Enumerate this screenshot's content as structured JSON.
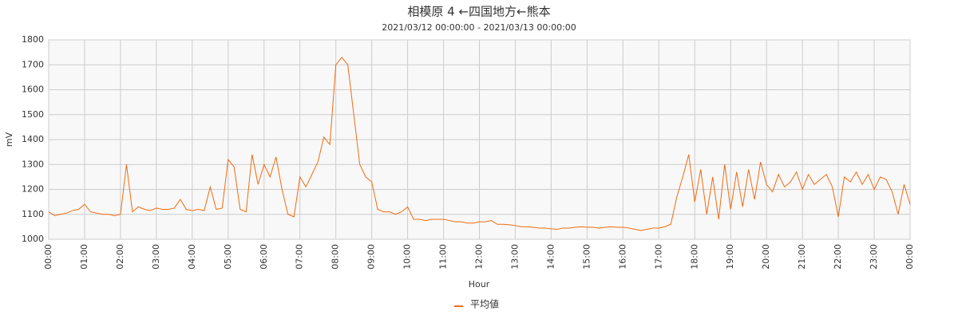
{
  "chart_data": {
    "type": "line",
    "title": "相模原 4 ←四国地方←熊本",
    "subtitle": "2021/03/12 00:00:00 - 2021/03/13 00:00:00",
    "x_label": "Hour",
    "y_label": "mV",
    "grid": true,
    "legend": "bottom",
    "x": [
      0,
      10,
      20,
      30,
      40,
      50,
      60,
      70,
      80,
      90,
      100,
      110,
      120,
      130,
      140,
      150,
      160,
      170,
      180,
      190,
      200,
      210,
      220,
      230,
      240,
      250,
      260,
      270,
      280,
      290,
      300,
      310,
      320,
      330,
      340,
      350,
      360,
      370,
      380,
      390,
      400,
      410,
      420,
      430,
      440,
      450,
      460,
      470,
      480,
      490,
      500,
      510,
      520,
      530,
      540,
      550,
      560,
      570,
      580,
      590,
      600,
      610,
      620,
      630,
      640,
      650,
      660,
      670,
      680,
      690,
      700,
      710,
      720,
      730,
      740,
      750,
      760,
      770,
      780,
      790,
      800,
      810,
      820,
      830,
      840,
      850,
      860,
      870,
      880,
      890,
      900,
      910,
      920,
      930,
      940,
      950,
      960,
      970,
      980,
      990,
      1000,
      1010,
      1020,
      1030,
      1040,
      1050,
      1060,
      1070,
      1080,
      1090,
      1100,
      1110,
      1120,
      1130,
      1140,
      1150,
      1160,
      1170,
      1180,
      1190,
      1200,
      1210,
      1220,
      1230,
      1240,
      1250,
      1260,
      1270,
      1280,
      1290,
      1300,
      1310,
      1320,
      1330,
      1340,
      1350,
      1360,
      1370,
      1380,
      1390,
      1400,
      1410,
      1420,
      1430,
      1440
    ],
    "series": [
      {
        "name": "平均値",
        "color": "#f26b0f",
        "values": [
          1110,
          1095,
          1100,
          1105,
          1115,
          1120,
          1140,
          1110,
          1105,
          1100,
          1100,
          1095,
          1100,
          1300,
          1110,
          1130,
          1120,
          1115,
          1125,
          1120,
          1120,
          1125,
          1160,
          1120,
          1115,
          1120,
          1115,
          1210,
          1120,
          1125,
          1320,
          1290,
          1120,
          1110,
          1340,
          1220,
          1300,
          1250,
          1330,
          1200,
          1100,
          1090,
          1250,
          1210,
          1260,
          1310,
          1410,
          1380,
          1700,
          1730,
          1700,
          1500,
          1300,
          1250,
          1230,
          1120,
          1110,
          1110,
          1100,
          1110,
          1130,
          1080,
          1080,
          1075,
          1080,
          1080,
          1080,
          1075,
          1070,
          1070,
          1065,
          1065,
          1070,
          1070,
          1075,
          1060,
          1060,
          1058,
          1055,
          1050,
          1050,
          1048,
          1045,
          1045,
          1042,
          1040,
          1045,
          1045,
          1048,
          1050,
          1048,
          1048,
          1045,
          1048,
          1050,
          1048,
          1048,
          1045,
          1040,
          1035,
          1040,
          1045,
          1045,
          1050,
          1060,
          1170,
          1250,
          1340,
          1150,
          1280,
          1100,
          1250,
          1080,
          1300,
          1120,
          1270,
          1130,
          1280,
          1160,
          1310,
          1220,
          1190,
          1260,
          1210,
          1230,
          1270,
          1200,
          1260,
          1220,
          1240,
          1260,
          1210,
          1090,
          1250,
          1230,
          1270,
          1220,
          1260,
          1200,
          1250,
          1240,
          1190,
          1100,
          1220,
          1140
        ]
      }
    ],
    "xlim": [
      0,
      1440
    ],
    "xticks": [
      {
        "value": 0,
        "label": "00:00"
      },
      {
        "value": 60,
        "label": "01:00"
      },
      {
        "value": 120,
        "label": "02:00"
      },
      {
        "value": 180,
        "label": "03:00"
      },
      {
        "value": 240,
        "label": "04:00"
      },
      {
        "value": 300,
        "label": "05:00"
      },
      {
        "value": 360,
        "label": "06:00"
      },
      {
        "value": 420,
        "label": "07:00"
      },
      {
        "value": 480,
        "label": "08:00"
      },
      {
        "value": 540,
        "label": "09:00"
      },
      {
        "value": 600,
        "label": "10:00"
      },
      {
        "value": 660,
        "label": "11:00"
      },
      {
        "value": 720,
        "label": "12:00"
      },
      {
        "value": 780,
        "label": "13:00"
      },
      {
        "value": 840,
        "label": "14:00"
      },
      {
        "value": 900,
        "label": "15:00"
      },
      {
        "value": 960,
        "label": "16:00"
      },
      {
        "value": 1020,
        "label": "17:00"
      },
      {
        "value": 1080,
        "label": "18:00"
      },
      {
        "value": 1140,
        "label": "19:00"
      },
      {
        "value": 1200,
        "label": "20:00"
      },
      {
        "value": 1260,
        "label": "21:00"
      },
      {
        "value": 1320,
        "label": "22:00"
      },
      {
        "value": 1380,
        "label": "23:00"
      },
      {
        "value": 1440,
        "label": "00:00"
      }
    ],
    "ylim": [
      1000,
      1800
    ],
    "yticks": [
      1000,
      1100,
      1200,
      1300,
      1400,
      1500,
      1600,
      1700,
      1800
    ]
  }
}
